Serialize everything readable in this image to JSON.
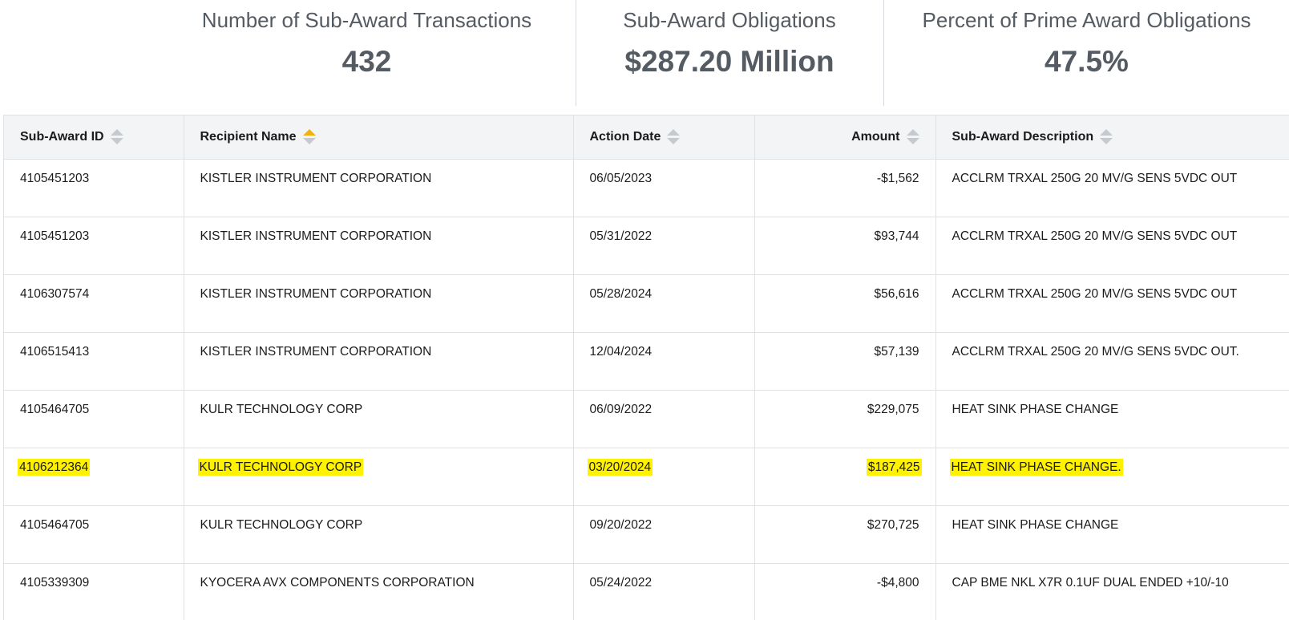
{
  "summary": {
    "transactions_label": "Number of Sub-Award Transactions",
    "transactions_value": "432",
    "obligations_label": "Sub-Award Obligations",
    "obligations_value": "$287.20 Million",
    "percent_label": "Percent of Prime Award Obligations",
    "percent_value": "47.5%"
  },
  "table": {
    "columns": {
      "id": "Sub-Award ID",
      "recipient": "Recipient Name",
      "date": "Action Date",
      "amount": "Amount",
      "description": "Sub-Award Description"
    },
    "sorted_column": "Recipient Name",
    "sort_direction": "ascending",
    "sort_active_color": "#f2b10b",
    "highlight_color": "#fff200",
    "rows": [
      {
        "id": "4105451203",
        "recipient": "KISTLER INSTRUMENT CORPORATION",
        "date": "06/05/2023",
        "amount": "-$1,562",
        "description": "ACCLRM TRXAL 250G 20 MV/G SENS 5VDC OUT",
        "highlighted": false
      },
      {
        "id": "4105451203",
        "recipient": "KISTLER INSTRUMENT CORPORATION",
        "date": "05/31/2022",
        "amount": "$93,744",
        "description": "ACCLRM TRXAL 250G 20 MV/G SENS 5VDC OUT",
        "highlighted": false
      },
      {
        "id": "4106307574",
        "recipient": "KISTLER INSTRUMENT CORPORATION",
        "date": "05/28/2024",
        "amount": "$56,616",
        "description": "ACCLRM TRXAL 250G 20 MV/G SENS 5VDC OUT",
        "highlighted": false
      },
      {
        "id": "4106515413",
        "recipient": "KISTLER INSTRUMENT CORPORATION",
        "date": "12/04/2024",
        "amount": "$57,139",
        "description": "ACCLRM TRXAL 250G 20 MV/G SENS 5VDC OUT.",
        "highlighted": false
      },
      {
        "id": "4105464705",
        "recipient": "KULR TECHNOLOGY CORP",
        "date": "06/09/2022",
        "amount": "$229,075",
        "description": "HEAT SINK PHASE CHANGE",
        "highlighted": false
      },
      {
        "id": "4106212364",
        "recipient": "KULR TECHNOLOGY CORP",
        "date": "03/20/2024",
        "amount": "$187,425",
        "description": "HEAT SINK PHASE CHANGE.",
        "highlighted": true
      },
      {
        "id": "4105464705",
        "recipient": "KULR TECHNOLOGY CORP",
        "date": "09/20/2022",
        "amount": "$270,725",
        "description": "HEAT SINK PHASE CHANGE",
        "highlighted": false
      },
      {
        "id": "4105339309",
        "recipient": "KYOCERA AVX COMPONENTS CORPORATION",
        "date": "05/24/2022",
        "amount": "-$4,800",
        "description": "CAP BME NKL X7R 0.1UF DUAL ENDED +10/-10",
        "highlighted": false
      }
    ]
  }
}
